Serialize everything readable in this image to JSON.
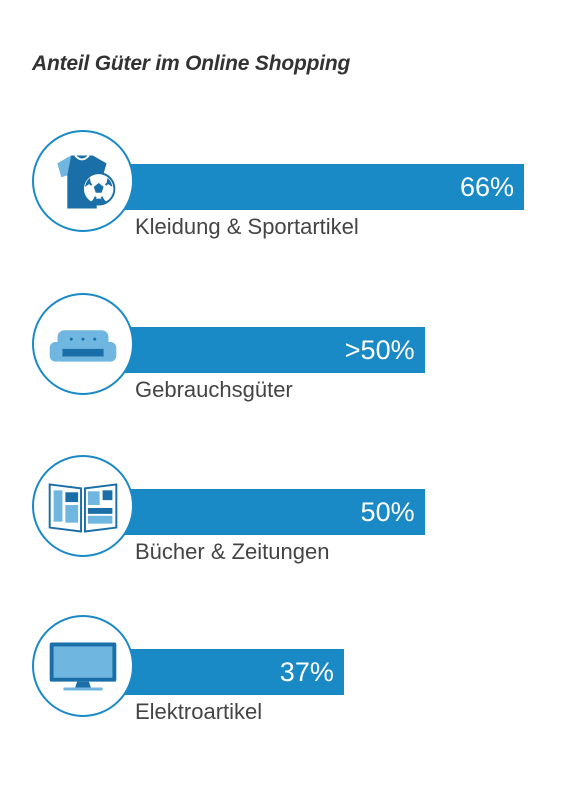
{
  "chart_data": {
    "type": "bar",
    "orientation": "horizontal",
    "title": "Anteil Güter im Online Shopping",
    "categories": [
      "Kleidung & Sportartikel",
      "Gebrauchsgüter",
      "Bücher & Zeitungen",
      "Elektroartikel"
    ],
    "values": [
      66,
      50,
      50,
      37
    ],
    "value_labels": [
      "66%",
      ">50%",
      "50%",
      "37%"
    ],
    "icons": [
      "shirt-football-icon",
      "sofa-icon",
      "newspaper-icon",
      "tv-icon"
    ],
    "xlim": [
      0,
      100
    ],
    "colors": {
      "bar": "#1a8ac6",
      "icon_dark": "#1b6fa8",
      "icon_light": "#6fb6e0",
      "outline": "#1a8ac6"
    }
  }
}
